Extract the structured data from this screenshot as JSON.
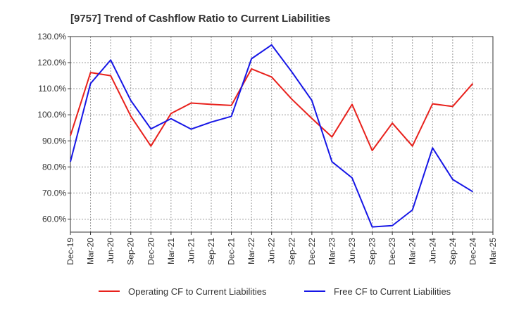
{
  "chart_data": {
    "type": "line",
    "title": "[9757]  Trend of Cashflow Ratio to Current Liabilities",
    "xlabel": "",
    "ylabel": "",
    "categories": [
      "Dec-19",
      "Mar-20",
      "Jun-20",
      "Sep-20",
      "Dec-20",
      "Mar-21",
      "Jun-21",
      "Sep-21",
      "Dec-21",
      "Mar-22",
      "Jun-22",
      "Sep-22",
      "Dec-22",
      "Mar-23",
      "Jun-23",
      "Sep-23",
      "Dec-23",
      "Mar-24",
      "Jun-24",
      "Sep-24",
      "Dec-24",
      "Mar-25"
    ],
    "x_tick_labels": [
      "Dec-19",
      "Mar-20",
      "Jun-20",
      "Sep-20",
      "Dec-20",
      "Mar-21",
      "Jun-21",
      "Sep-21",
      "Dec-21",
      "Mar-22",
      "Jun-22",
      "Sep-22",
      "Dec-22",
      "Mar-23",
      "Jun-23",
      "Sep-23",
      "Dec-23",
      "Mar-24",
      "Jun-24",
      "Sep-24",
      "Dec-24",
      "Mar-25"
    ],
    "y_tick_labels": [
      "60.0%",
      "70.0%",
      "80.0%",
      "90.0%",
      "100.0%",
      "110.0%",
      "120.0%",
      "130.0%"
    ],
    "y_ticks": [
      60,
      70,
      80,
      90,
      100,
      110,
      120,
      130
    ],
    "ylim": [
      55,
      130
    ],
    "grid": true,
    "legend_position": "bottom",
    "series": [
      {
        "name": "Operating CF to Current Liabilities",
        "color": "#e8211c",
        "values": [
          92.0,
          116.2,
          115.0,
          99.5,
          88.0,
          100.5,
          104.5,
          104.0,
          103.6,
          117.6,
          114.5,
          106.0,
          98.6,
          91.5,
          104.0,
          86.3,
          96.8,
          88.0,
          104.2,
          103.2,
          112.0,
          null
        ]
      },
      {
        "name": "Free CF to Current Liabilities",
        "color": "#1616e6",
        "values": [
          82.0,
          112.0,
          121.0,
          105.5,
          94.6,
          98.5,
          94.5,
          97.2,
          99.4,
          121.5,
          126.8,
          116.5,
          105.5,
          82.0,
          75.8,
          57.0,
          57.5,
          63.5,
          87.3,
          75.2,
          70.5,
          null
        ]
      }
    ]
  }
}
